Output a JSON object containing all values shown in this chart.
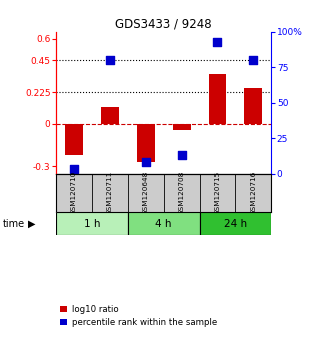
{
  "title": "GDS3433 / 9248",
  "samples": [
    "GSM120710",
    "GSM120711",
    "GSM120648",
    "GSM120708",
    "GSM120715",
    "GSM120716"
  ],
  "log10_ratio": [
    -0.22,
    0.12,
    -0.27,
    -0.04,
    0.35,
    0.255
  ],
  "percentile_rank": [
    3,
    80,
    8,
    13,
    93,
    80
  ],
  "groups": [
    {
      "label": "1 h",
      "indices": [
        0,
        1
      ],
      "color": "#b8f0b8"
    },
    {
      "label": "4 h",
      "indices": [
        2,
        3
      ],
      "color": "#80e080"
    },
    {
      "label": "24 h",
      "indices": [
        4,
        5
      ],
      "color": "#30c030"
    }
  ],
  "ylim_left": [
    -0.35,
    0.65
  ],
  "ylim_right": [
    0,
    100
  ],
  "yticks_left": [
    -0.3,
    0,
    0.225,
    0.45,
    0.6
  ],
  "yticks_right": [
    0,
    25,
    50,
    75,
    100
  ],
  "hlines": [
    0.45,
    0.225
  ],
  "bar_color": "#cc0000",
  "dot_color": "#0000cc",
  "bar_width": 0.5,
  "dot_size": 28,
  "background_color": "#ffffff",
  "legend_items": [
    "log10 ratio",
    "percentile rank within the sample"
  ],
  "label_bg": "#cccccc",
  "time_label": "time"
}
